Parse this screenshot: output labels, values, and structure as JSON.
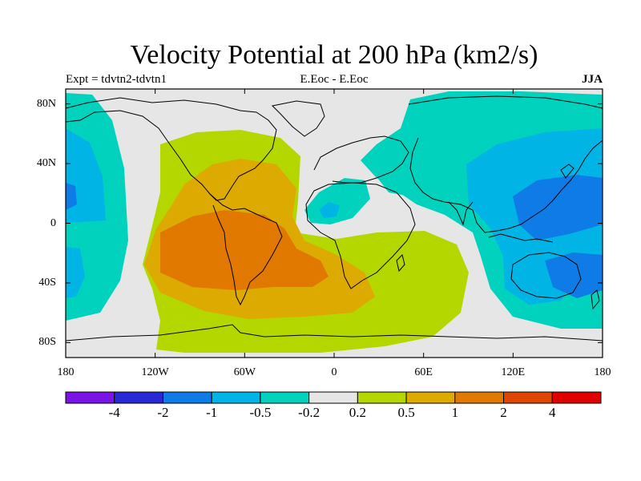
{
  "title": "Velocity Potential at 200 hPa (km2/s)",
  "subtitle_left": "Expt = tdvtn2-tdvtn1",
  "subtitle_center": "E.Eoc - E.Eoc",
  "subtitle_right": "JJA",
  "map": {
    "projection": "cylindrical-equidistant",
    "lon_range": [
      -180,
      180
    ],
    "lat_range": [
      -90,
      90
    ],
    "lon_ticks": [
      {
        "value": -180,
        "label": "180"
      },
      {
        "value": -120,
        "label": "120W"
      },
      {
        "value": -60,
        "label": "60W"
      },
      {
        "value": 0,
        "label": "0"
      },
      {
        "value": 60,
        "label": "60E"
      },
      {
        "value": 120,
        "label": "120E"
      },
      {
        "value": 180,
        "label": "180"
      }
    ],
    "lat_ticks": [
      {
        "value": 80,
        "label": "80N"
      },
      {
        "value": 40,
        "label": "40N"
      },
      {
        "value": 0,
        "label": "0"
      },
      {
        "value": -40,
        "label": "40S"
      },
      {
        "value": -80,
        "label": "80S"
      }
    ],
    "background_color": "#e6e6e6",
    "coastline_color": "#000000"
  },
  "colorbar": {
    "levels": [
      "-4",
      "-2",
      "-1",
      "-0.5",
      "-0.2",
      "0.2",
      "0.5",
      "1",
      "2",
      "4"
    ],
    "colors": [
      "#7a14e6",
      "#2828d6",
      "#0f7be6",
      "#00b4e6",
      "#00d2be",
      "#e6e6e6",
      "#b4d700",
      "#dcaa00",
      "#e17800",
      "#e14600",
      "#e10000"
    ]
  },
  "chart_data": {
    "type": "heatmap",
    "title": "Velocity Potential at 200 hPa (km2/s)",
    "units": "km2/s",
    "season": "JJA",
    "note_regions": [
      {
        "name": "positive maximum over South America / South Atlantic",
        "center_lon": -50,
        "center_lat": -20,
        "value": 2
      },
      {
        "name": "negative minimum over western Pacific / Asia",
        "center_lon": 145,
        "center_lat": 15,
        "value": -1
      },
      {
        "name": "negative minimum over Australia",
        "center_lon": 145,
        "center_lat": -25,
        "value": -1
      },
      {
        "name": "negative minimum eastern Pacific",
        "center_lon": -178,
        "center_lat": 18,
        "value": -1
      }
    ],
    "contour_levels": [
      -4,
      -2,
      -1,
      -0.5,
      -0.2,
      0.2,
      0.5,
      1,
      2,
      4
    ]
  }
}
